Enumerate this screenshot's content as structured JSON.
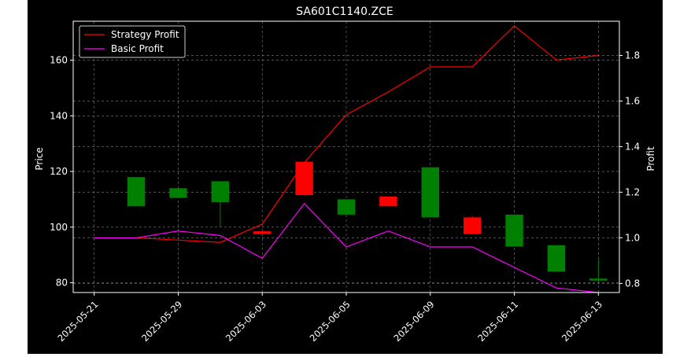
{
  "chart_data": {
    "type": "candlestick+line",
    "title": "SA601C1140.ZCE",
    "xlabel": "",
    "ylabel": "Price",
    "y2label": "Profit",
    "ylim": [
      76.5,
      174
    ],
    "y2lim": [
      0.76,
      1.95
    ],
    "grid": true,
    "legend_position": "top-left",
    "colors": {
      "background": "#000000",
      "up": "#ff0000",
      "down": "#008000",
      "strategy": "#ff0000",
      "basic": "#ff00ff",
      "text": "#ffffff",
      "grid": "#808080"
    },
    "x_ticks": [
      "2025-05-21",
      "2025-05-29",
      "2025-06-03",
      "2025-06-05",
      "2025-06-09",
      "2025-06-11",
      "2025-06-13"
    ],
    "y_ticks": [
      80,
      100,
      120,
      140,
      160
    ],
    "y2_ticks": [
      "0.8",
      "1.0",
      "1.2",
      "1.4",
      "1.6",
      "1.8"
    ],
    "candles": [
      {
        "open": 118,
        "close": 107.5,
        "high": 118,
        "low": 107.5
      },
      {
        "open": 114,
        "close": 110.5,
        "high": 114,
        "low": 110.5
      },
      {
        "open": 116.5,
        "close": 109,
        "high": 116.5,
        "low": 100
      },
      {
        "open": 97.5,
        "close": 98.5,
        "high": 98.5,
        "low": 97.5
      },
      {
        "open": 111.5,
        "close": 123.5,
        "high": 123.5,
        "low": 111.5
      },
      {
        "open": 110,
        "close": 104.5,
        "high": 110,
        "low": 104.5
      },
      {
        "open": 107.5,
        "close": 111,
        "high": 111,
        "low": 107.5
      },
      {
        "open": 121.5,
        "close": 103.5,
        "high": 121.5,
        "low": 103.5
      },
      {
        "open": 97.5,
        "close": 103.5,
        "high": 104,
        "low": 97.5
      },
      {
        "open": 104.5,
        "close": 93,
        "high": 104.5,
        "low": 93
      },
      {
        "open": 93.5,
        "close": 84,
        "high": 93.5,
        "low": 84
      },
      {
        "open": 81.5,
        "close": 81,
        "high": 89,
        "low": 81
      }
    ],
    "series": [
      {
        "name": "Strategy Profit",
        "x": [
          0,
          1,
          2,
          3,
          4,
          5,
          6,
          7,
          8,
          9,
          10,
          11,
          12
        ],
        "values": [
          1.0,
          1.0,
          0.99,
          0.98,
          1.06,
          1.33,
          1.54,
          1.64,
          1.75,
          1.75,
          1.93,
          1.78,
          1.8
        ]
      },
      {
        "name": "Basic Profit",
        "x": [
          0,
          1,
          2,
          3,
          4,
          5,
          6,
          7,
          8,
          9,
          10,
          11,
          12
        ],
        "values": [
          1.0,
          1.0,
          1.03,
          1.01,
          0.91,
          1.15,
          0.96,
          1.03,
          0.96,
          0.96,
          0.87,
          0.78,
          0.76
        ]
      }
    ]
  }
}
